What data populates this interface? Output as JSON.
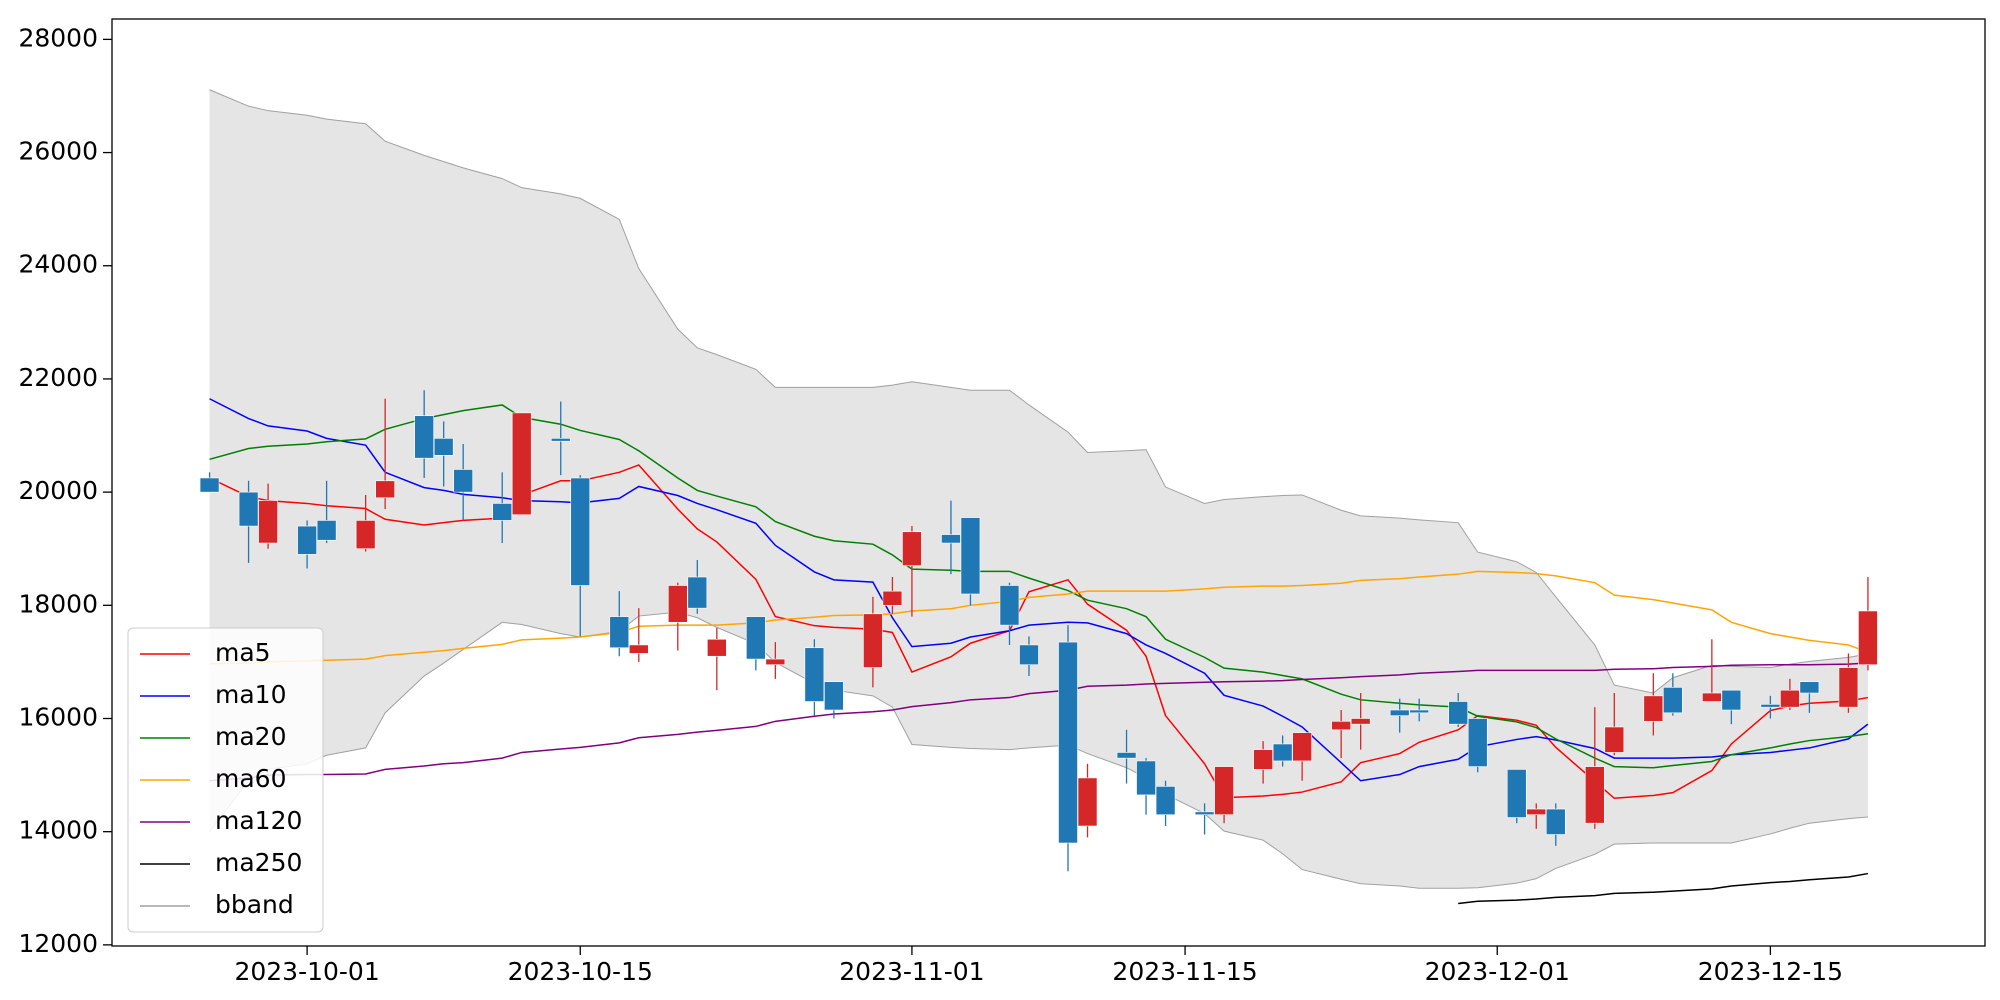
{
  "chart_data": {
    "type": "candlestick",
    "x": [
      "2023-09-26",
      "2023-09-28",
      "2023-09-29",
      "2023-10-01",
      "2023-10-02",
      "2023-10-04",
      "2023-10-05",
      "2023-10-07",
      "2023-10-08",
      "2023-10-09",
      "2023-10-11",
      "2023-10-12",
      "2023-10-14",
      "2023-10-15",
      "2023-10-17",
      "2023-10-18",
      "2023-10-20",
      "2023-10-21",
      "2023-10-22",
      "2023-10-24",
      "2023-10-25",
      "2023-10-27",
      "2023-10-28",
      "2023-10-30",
      "2023-10-31",
      "2023-11-01",
      "2023-11-03",
      "2023-11-04",
      "2023-11-06",
      "2023-11-07",
      "2023-11-09",
      "2023-11-10",
      "2023-11-12",
      "2023-11-13",
      "2023-11-14",
      "2023-11-16",
      "2023-11-17",
      "2023-11-19",
      "2023-11-20",
      "2023-11-21",
      "2023-11-23",
      "2023-11-24",
      "2023-11-26",
      "2023-11-27",
      "2023-11-29",
      "2023-11-30",
      "2023-12-02",
      "2023-12-03",
      "2023-12-04",
      "2023-12-06",
      "2023-12-07",
      "2023-12-09",
      "2023-12-10",
      "2023-12-12",
      "2023-12-13",
      "2023-12-15",
      "2023-12-16",
      "2023-12-17",
      "2023-12-19",
      "2023-12-20"
    ],
    "open": [
      20250,
      20000,
      19100,
      19400,
      19500,
      19000,
      19900,
      21350,
      20950,
      20400,
      19800,
      19600,
      20950,
      20250,
      17800,
      17150,
      17700,
      18500,
      17100,
      17800,
      16950,
      17250,
      16650,
      16900,
      18000,
      18700,
      19250,
      19550,
      18350,
      17300,
      17350,
      14100,
      15400,
      15250,
      14800,
      14350,
      14300,
      15100,
      15550,
      15250,
      15800,
      15900,
      16150,
      16150,
      16300,
      16000,
      15100,
      14300,
      14400,
      14150,
      15400,
      15950,
      16550,
      16300,
      16500,
      16250,
      16200,
      16650,
      16200,
      16950
    ],
    "high": [
      20350,
      20200,
      20150,
      19500,
      20200,
      19950,
      21650,
      21800,
      21250,
      20850,
      20350,
      21400,
      21600,
      20300,
      18250,
      17950,
      18400,
      18800,
      17600,
      17800,
      17350,
      17400,
      16650,
      18150,
      18500,
      19400,
      19850,
      19550,
      18400,
      17450,
      17650,
      15200,
      15800,
      15300,
      14900,
      14500,
      15150,
      15600,
      15700,
      15750,
      16150,
      16450,
      16350,
      16350,
      16450,
      16000,
      15100,
      14500,
      14500,
      16200,
      16450,
      16800,
      16800,
      17400,
      16500,
      16400,
      16700,
      16650,
      17150,
      18500
    ],
    "low": [
      20000,
      18750,
      19000,
      18650,
      19100,
      18950,
      19700,
      20250,
      20100,
      19500,
      19100,
      19600,
      20300,
      17450,
      17100,
      17000,
      17200,
      17850,
      16500,
      16850,
      16700,
      16050,
      16000,
      16550,
      17850,
      17800,
      18550,
      18000,
      17300,
      16750,
      13300,
      13900,
      14850,
      14300,
      14100,
      13950,
      14150,
      14850,
      15150,
      14900,
      15300,
      15450,
      15750,
      15950,
      15850,
      15050,
      14150,
      14050,
      13750,
      14050,
      15350,
      15700,
      16050,
      16300,
      15900,
      16000,
      16150,
      16100,
      16100,
      16850
    ],
    "close": [
      20000,
      19400,
      19850,
      18900,
      19150,
      19500,
      20200,
      20600,
      20650,
      20000,
      19500,
      21400,
      20900,
      18350,
      17250,
      17300,
      18350,
      17950,
      17400,
      17050,
      17050,
      16300,
      16150,
      17850,
      18250,
      19300,
      19100,
      18200,
      17650,
      16950,
      13800,
      14950,
      15300,
      14650,
      14300,
      14300,
      15150,
      15450,
      15250,
      15750,
      15950,
      16000,
      16050,
      16100,
      15900,
      15150,
      14250,
      14400,
      13950,
      15150,
      15850,
      16400,
      16100,
      16450,
      16150,
      16200,
      16500,
      16450,
      16900,
      17900
    ],
    "up_color": "#d62728",
    "down_color": "#1f77b4",
    "series": [
      {
        "name": "ma5",
        "color": "#ff0000",
        "values": [
          20250,
          19920,
          19850,
          19800,
          19760,
          19710,
          19520,
          19420,
          19460,
          19500,
          19540,
          19950,
          20200,
          20200,
          20350,
          20480,
          19700,
          19350,
          19120,
          18460,
          17800,
          17640,
          17610,
          17580,
          17520,
          16820,
          17090,
          17330,
          17550,
          18240,
          18450,
          18020,
          17560,
          17100,
          16050,
          15200,
          14600,
          14630,
          14660,
          14700,
          14880,
          15220,
          15380,
          15580,
          15800,
          16050,
          15970,
          15880,
          15490,
          14890,
          14590,
          14640,
          14690,
          15080,
          15550,
          16140,
          16220,
          16270,
          16310,
          16370
        ]
      },
      {
        "name": "ma10",
        "color": "#0000ff",
        "values": [
          21650,
          21300,
          21170,
          21080,
          20950,
          20830,
          20350,
          20080,
          20030,
          19960,
          19900,
          19850,
          19830,
          19810,
          19890,
          20100,
          19940,
          19800,
          19690,
          19450,
          19060,
          18590,
          18450,
          18410,
          17780,
          17270,
          17330,
          17440,
          17550,
          17650,
          17700,
          17690,
          17500,
          17300,
          17150,
          16800,
          16410,
          16220,
          16040,
          15850,
          15220,
          14900,
          15010,
          15150,
          15280,
          15500,
          15630,
          15680,
          15620,
          15470,
          15300,
          15300,
          15300,
          15320,
          15360,
          15400,
          15440,
          15480,
          15640,
          15900
        ]
      },
      {
        "name": "ma20",
        "color": "#008000",
        "values": [
          20580,
          20770,
          20810,
          20850,
          20890,
          20940,
          21110,
          21300,
          21370,
          21440,
          21540,
          21320,
          21200,
          21090,
          20930,
          20730,
          20250,
          20030,
          19930,
          19740,
          19480,
          19220,
          19140,
          19080,
          18890,
          18640,
          18620,
          18600,
          18600,
          18480,
          18260,
          18090,
          17940,
          17800,
          17400,
          17080,
          16890,
          16820,
          16760,
          16700,
          16430,
          16330,
          16270,
          16240,
          16200,
          16040,
          15940,
          15840,
          15640,
          15300,
          15150,
          15130,
          15170,
          15240,
          15360,
          15480,
          15550,
          15610,
          15680,
          15730
        ]
      },
      {
        "name": "ma60",
        "color": "#ffa500",
        "values": [
          16970,
          16980,
          17000,
          17020,
          17030,
          17050,
          17110,
          17170,
          17200,
          17240,
          17310,
          17390,
          17420,
          17440,
          17520,
          17630,
          17650,
          17650,
          17650,
          17690,
          17740,
          17790,
          17820,
          17830,
          17850,
          17900,
          17940,
          18000,
          18070,
          18140,
          18200,
          18250,
          18250,
          18250,
          18250,
          18290,
          18320,
          18340,
          18340,
          18350,
          18390,
          18440,
          18470,
          18500,
          18550,
          18600,
          18580,
          18560,
          18520,
          18400,
          18180,
          18100,
          18040,
          17920,
          17700,
          17500,
          17440,
          17380,
          17300,
          17170
        ]
      },
      {
        "name": "ma120",
        "color": "#800080",
        "values": [
          14900,
          14950,
          15000,
          15010,
          15010,
          15020,
          15100,
          15160,
          15200,
          15220,
          15300,
          15400,
          15460,
          15490,
          15570,
          15660,
          15720,
          15760,
          15790,
          15860,
          15950,
          16040,
          16080,
          16120,
          16150,
          16210,
          16280,
          16330,
          16370,
          16440,
          16500,
          16570,
          16590,
          16610,
          16620,
          16640,
          16650,
          16660,
          16670,
          16690,
          16720,
          16740,
          16770,
          16800,
          16830,
          16850,
          16850,
          16850,
          16850,
          16850,
          16870,
          16880,
          16900,
          16920,
          16940,
          16950,
          16950,
          16950,
          16960,
          16980
        ]
      },
      {
        "name": "ma250",
        "color": "#000000",
        "values": [
          null,
          null,
          null,
          null,
          null,
          null,
          null,
          null,
          null,
          null,
          null,
          null,
          null,
          null,
          null,
          null,
          null,
          null,
          null,
          null,
          null,
          null,
          null,
          null,
          null,
          null,
          null,
          null,
          null,
          null,
          null,
          null,
          null,
          null,
          null,
          null,
          null,
          null,
          null,
          null,
          null,
          null,
          null,
          null,
          12730,
          12770,
          12790,
          12810,
          12840,
          12870,
          12910,
          12930,
          12950,
          12990,
          13040,
          13100,
          13120,
          13150,
          13200,
          13260
        ]
      }
    ],
    "band": {
      "name": "bband",
      "color": "#a0a0a0",
      "fill": "#e5e5e5",
      "upper": [
        27110,
        26820,
        26740,
        26660,
        26590,
        26510,
        26200,
        25950,
        25840,
        25730,
        25540,
        25380,
        25270,
        25190,
        24820,
        23950,
        22880,
        22550,
        22430,
        22170,
        21850,
        21850,
        21850,
        21850,
        21890,
        21950,
        21850,
        21800,
        21800,
        21540,
        21060,
        20700,
        20730,
        20750,
        20090,
        19800,
        19870,
        19920,
        19940,
        19950,
        19680,
        19580,
        19540,
        19510,
        19460,
        18940,
        18770,
        18580,
        18150,
        17300,
        16590,
        16450,
        16720,
        16940,
        16920,
        16900,
        16960,
        17010,
        17080,
        17140
      ],
      "lower": [
        14000,
        14900,
        15100,
        15200,
        15350,
        15480,
        16100,
        16750,
        16980,
        17220,
        17700,
        17660,
        17500,
        17440,
        17540,
        17810,
        17880,
        17780,
        17610,
        17320,
        16990,
        16620,
        16500,
        16400,
        16200,
        15540,
        15490,
        15470,
        15450,
        15480,
        15530,
        15380,
        15130,
        14950,
        14660,
        14320,
        14010,
        13850,
        13610,
        13330,
        13160,
        13080,
        13040,
        13000,
        13000,
        13010,
        13090,
        13170,
        13350,
        13600,
        13780,
        13800,
        13800,
        13800,
        13800,
        13960,
        14060,
        14150,
        14230,
        14260
      ]
    },
    "xlim": [
      "2023-09-21",
      "2023-12-26"
    ],
    "xticks": [
      "2023-10-01",
      "2023-10-15",
      "2023-11-01",
      "2023-11-15",
      "2023-12-01",
      "2023-12-15"
    ],
    "ylim": [
      11980,
      28360
    ],
    "yticks": [
      12000,
      14000,
      16000,
      18000,
      20000,
      22000,
      24000,
      26000,
      28000
    ],
    "legend": "lower left"
  }
}
